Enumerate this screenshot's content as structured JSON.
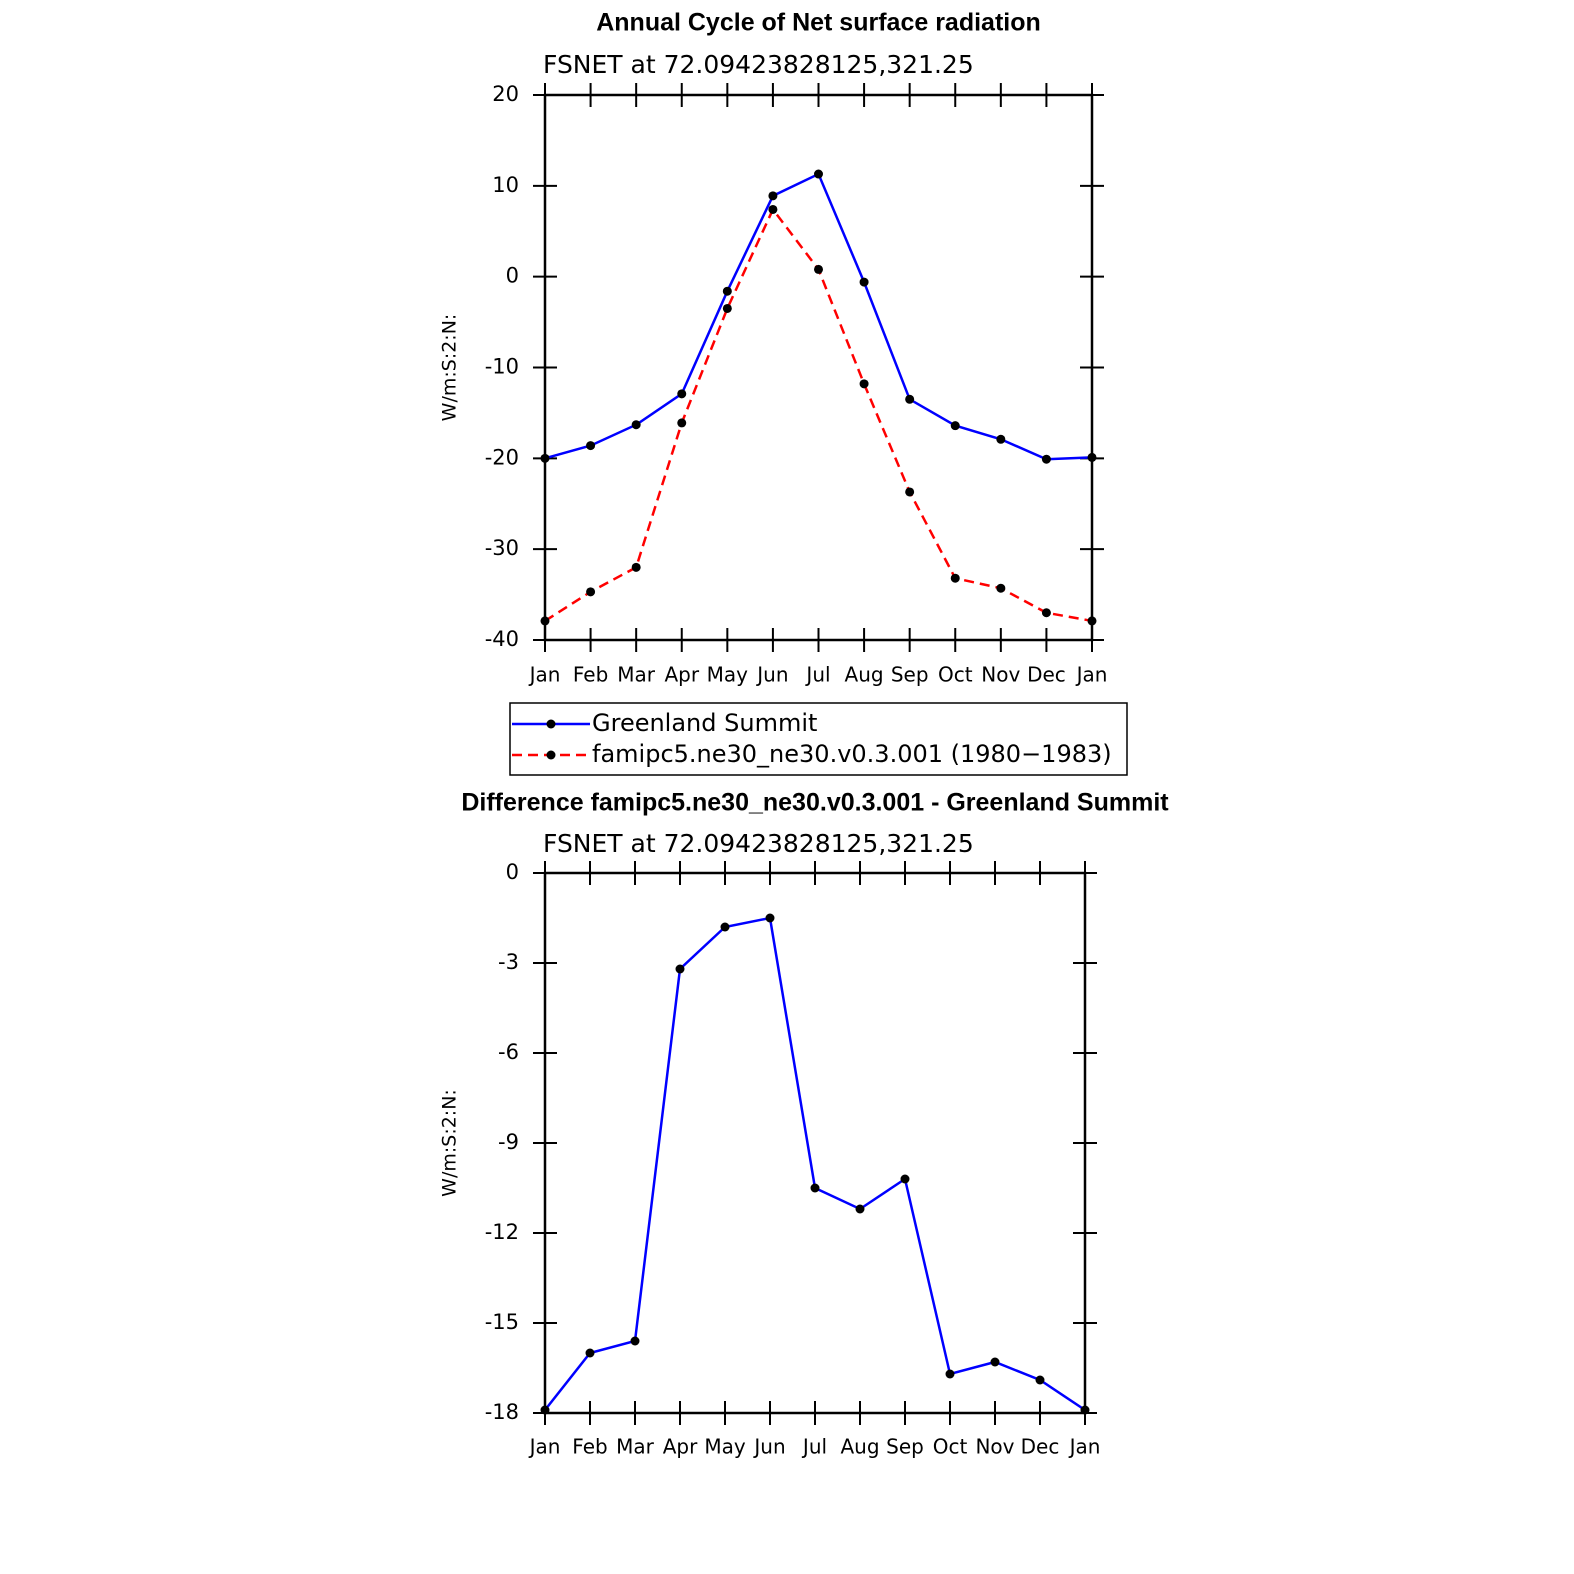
{
  "chart_data": [
    {
      "type": "line",
      "title": "Annual Cycle of Net surface radiation",
      "subtitle": "FSNET at 72.09423828125,321.25",
      "y_label": "W/m:S:2:N:",
      "categories": [
        "Jan",
        "Feb",
        "Mar",
        "Apr",
        "May",
        "Jun",
        "Jul",
        "Aug",
        "Sep",
        "Oct",
        "Nov",
        "Dec",
        "Jan"
      ],
      "ylim": [
        -40,
        20
      ],
      "yticks": [
        -40,
        -30,
        -20,
        -10,
        0,
        10,
        20
      ],
      "legend": "bottom",
      "series": [
        {
          "name": "Greenland Summit",
          "color": "#0000ff",
          "line_style": "solid",
          "values": [
            -20.0,
            -18.6,
            -16.3,
            -12.9,
            -1.6,
            8.9,
            11.3,
            -0.6,
            -13.5,
            -16.4,
            -17.9,
            -20.1,
            -19.9
          ]
        },
        {
          "name": "famipc5.ne30_ne30.v0.3.001 (1980−1983)",
          "color": "#ff0000",
          "line_style": "dashed",
          "values": [
            -37.9,
            -34.7,
            -32.0,
            -16.1,
            -3.5,
            7.4,
            0.8,
            -11.8,
            -23.7,
            -33.2,
            -34.3,
            -37.0,
            -37.9
          ]
        }
      ]
    },
    {
      "type": "line",
      "title": "Difference famipc5.ne30_ne30.v0.3.001 - Greenland Summit",
      "subtitle": "FSNET at 72.09423828125,321.25",
      "y_label": "W/m:S:2:N:",
      "categories": [
        "Jan",
        "Feb",
        "Mar",
        "Apr",
        "May",
        "Jun",
        "Jul",
        "Aug",
        "Sep",
        "Oct",
        "Nov",
        "Dec",
        "Jan"
      ],
      "ylim": [
        -18,
        0
      ],
      "yticks": [
        -18,
        -15,
        -12,
        -9,
        -6,
        -3,
        0
      ],
      "series": [
        {
          "color": "#0000ff",
          "line_style": "solid",
          "values": [
            -17.9,
            -16.0,
            -15.6,
            -3.2,
            -1.8,
            -1.5,
            -10.5,
            -11.2,
            -10.2,
            -16.7,
            -16.3,
            -16.9,
            -17.9
          ]
        }
      ]
    }
  ]
}
